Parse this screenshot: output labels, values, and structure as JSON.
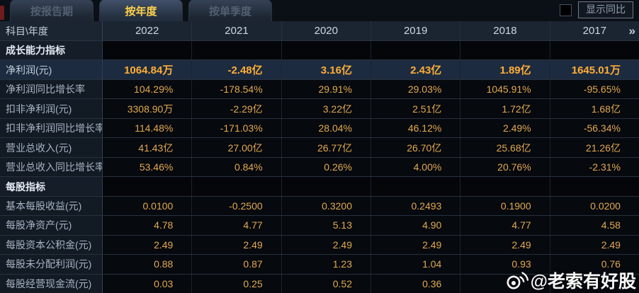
{
  "tabs": [
    {
      "label": "按报告期",
      "active": false
    },
    {
      "label": "按年度",
      "active": true
    },
    {
      "label": "按单季度",
      "active": false
    }
  ],
  "show_yoy": {
    "label": "显示同比",
    "checked": false
  },
  "table": {
    "corner_label": "科目\\年度",
    "years": [
      "2022",
      "2021",
      "2020",
      "2019",
      "2018",
      "2017"
    ],
    "more_icon": "»",
    "rows": [
      {
        "type": "section",
        "label": "成长能力指标",
        "highlight": false,
        "values": [
          "",
          "",
          "",
          "",
          "",
          ""
        ]
      },
      {
        "type": "data",
        "label": "净利润(元)",
        "highlight": true,
        "values": [
          "1064.84万",
          "-2.48亿",
          "3.16亿",
          "2.43亿",
          "1.89亿",
          "1645.01万"
        ]
      },
      {
        "type": "data",
        "label": "净利润同比增长率",
        "highlight": false,
        "values": [
          "104.29%",
          "-178.54%",
          "29.91%",
          "29.03%",
          "1045.91%",
          "-95.65%"
        ]
      },
      {
        "type": "data",
        "label": "扣非净利润(元)",
        "highlight": false,
        "values": [
          "3308.90万",
          "-2.29亿",
          "3.22亿",
          "2.51亿",
          "1.72亿",
          "1.68亿"
        ]
      },
      {
        "type": "data",
        "label": "扣非净利润同比增长率",
        "highlight": false,
        "values": [
          "114.48%",
          "-171.03%",
          "28.04%",
          "46.12%",
          "2.49%",
          "-56.34%"
        ]
      },
      {
        "type": "data",
        "label": "营业总收入(元)",
        "highlight": false,
        "values": [
          "41.43亿",
          "27.00亿",
          "26.77亿",
          "26.70亿",
          "25.68亿",
          "21.26亿"
        ]
      },
      {
        "type": "data",
        "label": "营业总收入同比增长率",
        "highlight": false,
        "values": [
          "53.46%",
          "0.84%",
          "0.26%",
          "4.00%",
          "20.76%",
          "-2.31%"
        ]
      },
      {
        "type": "section",
        "label": "每股指标",
        "highlight": false,
        "values": [
          "",
          "",
          "",
          "",
          "",
          ""
        ]
      },
      {
        "type": "data",
        "label": "基本每股收益(元)",
        "highlight": false,
        "values": [
          "0.0100",
          "-0.2500",
          "0.3200",
          "0.2493",
          "0.1900",
          "0.0200"
        ]
      },
      {
        "type": "data",
        "label": "每股净资产(元)",
        "highlight": false,
        "values": [
          "4.78",
          "4.77",
          "5.13",
          "4.90",
          "4.77",
          "4.58"
        ]
      },
      {
        "type": "data",
        "label": "每股资本公积金(元)",
        "highlight": false,
        "values": [
          "2.49",
          "2.49",
          "2.49",
          "2.49",
          "2.49",
          "2.49"
        ]
      },
      {
        "type": "data",
        "label": "每股未分配利润(元)",
        "highlight": false,
        "values": [
          "0.88",
          "0.87",
          "1.23",
          "1.04",
          "0.93",
          "0.76"
        ]
      },
      {
        "type": "data",
        "label": "每股经营现金流(元)",
        "highlight": false,
        "values": [
          "0.03",
          "0.25",
          "0.52",
          "0.36",
          "",
          ""
        ]
      }
    ]
  },
  "watermark": {
    "text": "@老索有好股"
  },
  "colors": {
    "accent_yellow": "#ffd24a",
    "value_orange": "#e3a94f",
    "highlight_value_orange": "#ffae36",
    "highlight_row_bg": "#1d2b40",
    "header_bg": "#1b2431",
    "label_col_bg": "#121a24"
  }
}
